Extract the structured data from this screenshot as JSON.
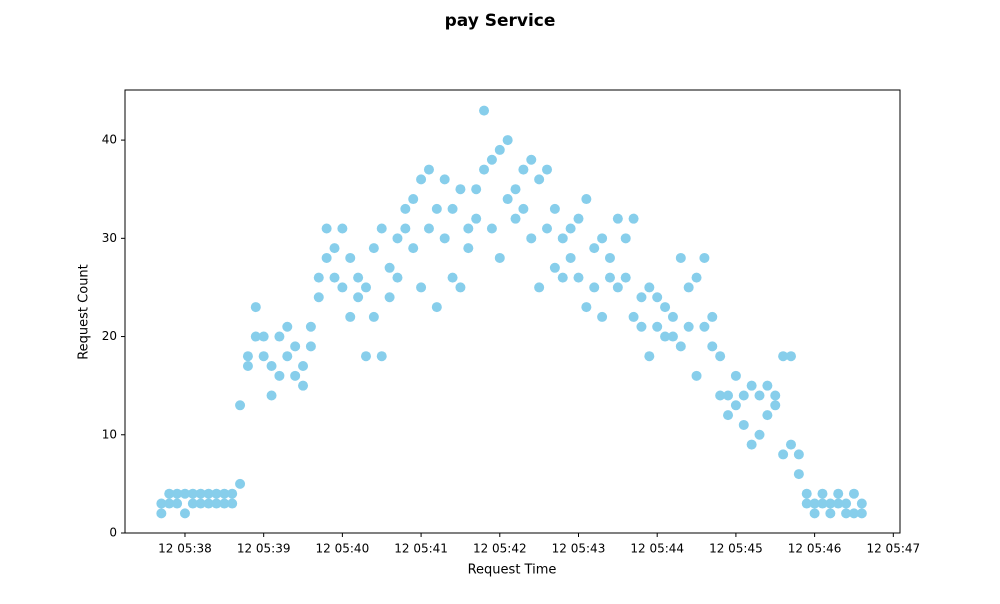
{
  "chart_data": {
    "type": "scatter",
    "title": "pay Service",
    "x_label": "Request Time",
    "y_label": "Request Count",
    "color": "#87ceeb",
    "grid": false,
    "xlim": [
      37.238,
      47.085
    ],
    "ylim": [
      0,
      45.1
    ],
    "xticks": [
      {
        "value": 38,
        "label": "12 05:38"
      },
      {
        "value": 39,
        "label": "12 05:39"
      },
      {
        "value": 40,
        "label": "12 05:40"
      },
      {
        "value": 41,
        "label": "12 05:41"
      },
      {
        "value": 42,
        "label": "12 05:42"
      },
      {
        "value": 43,
        "label": "12 05:43"
      },
      {
        "value": 44,
        "label": "12 05:44"
      },
      {
        "value": 45,
        "label": "12 05:45"
      },
      {
        "value": 46,
        "label": "12 05:46"
      },
      {
        "value": 47,
        "label": "12 05:47"
      }
    ],
    "yticks": [
      0,
      10,
      20,
      30,
      40
    ],
    "x": [
      37.7,
      37.7,
      37.8,
      37.8,
      37.9,
      37.9,
      38.0,
      38.0,
      38.1,
      38.1,
      38.2,
      38.2,
      38.3,
      38.3,
      38.4,
      38.4,
      38.5,
      38.5,
      38.6,
      38.6,
      38.7,
      38.7,
      38.8,
      38.8,
      38.9,
      38.9,
      39.0,
      39.0,
      39.1,
      39.1,
      39.2,
      39.2,
      39.3,
      39.3,
      39.4,
      39.4,
      39.5,
      39.5,
      39.6,
      39.6,
      39.7,
      39.7,
      39.8,
      39.8,
      39.9,
      39.9,
      40.0,
      40.0,
      40.1,
      40.1,
      40.2,
      40.2,
      40.3,
      40.3,
      40.4,
      40.4,
      40.5,
      40.5,
      40.6,
      40.6,
      40.7,
      40.7,
      40.8,
      40.8,
      40.9,
      40.9,
      41.0,
      41.0,
      41.1,
      41.1,
      41.2,
      41.2,
      41.3,
      41.3,
      41.4,
      41.4,
      41.5,
      41.5,
      41.6,
      41.6,
      41.7,
      41.7,
      41.8,
      41.8,
      41.9,
      41.9,
      42.0,
      42.0,
      42.1,
      42.1,
      42.2,
      42.2,
      42.3,
      42.3,
      42.4,
      42.4,
      42.5,
      42.5,
      42.6,
      42.6,
      42.7,
      42.7,
      42.8,
      42.8,
      42.9,
      42.9,
      43.0,
      43.0,
      43.1,
      43.1,
      43.2,
      43.2,
      43.3,
      43.3,
      43.4,
      43.4,
      43.5,
      43.5,
      43.6,
      43.6,
      43.7,
      43.7,
      43.8,
      43.8,
      43.9,
      43.9,
      44.0,
      44.0,
      44.1,
      44.1,
      44.2,
      44.2,
      44.3,
      44.3,
      44.4,
      44.4,
      44.5,
      44.5,
      44.6,
      44.6,
      44.7,
      44.7,
      44.8,
      44.8,
      44.9,
      44.9,
      45.0,
      45.0,
      45.1,
      45.1,
      45.2,
      45.2,
      45.3,
      45.3,
      45.4,
      45.4,
      45.5,
      45.5,
      45.6,
      45.6,
      45.7,
      45.7,
      45.8,
      45.8,
      45.9,
      45.9,
      46.0,
      46.0,
      46.1,
      46.1,
      46.2,
      46.2,
      46.3,
      46.3,
      46.4,
      46.4,
      46.5,
      46.5,
      46.6,
      46.6
    ],
    "values": [
      2,
      3,
      4,
      3,
      4,
      3,
      2,
      4,
      3,
      4,
      4,
      3,
      3,
      4,
      4,
      3,
      3,
      4,
      4,
      3,
      5,
      13,
      18,
      17,
      23,
      20,
      18,
      20,
      14,
      17,
      20,
      16,
      21,
      18,
      19,
      16,
      17,
      15,
      21,
      19,
      24,
      26,
      31,
      28,
      29,
      26,
      31,
      25,
      28,
      22,
      26,
      24,
      18,
      25,
      29,
      22,
      31,
      18,
      27,
      24,
      30,
      26,
      33,
      31,
      34,
      29,
      36,
      25,
      37,
      31,
      33,
      23,
      36,
      30,
      33,
      26,
      35,
      25,
      31,
      29,
      35,
      32,
      43,
      37,
      38,
      31,
      39,
      28,
      40,
      34,
      35,
      32,
      37,
      33,
      38,
      30,
      36,
      25,
      37,
      31,
      33,
      27,
      30,
      26,
      31,
      28,
      32,
      26,
      34,
      23,
      29,
      25,
      30,
      22,
      28,
      26,
      32,
      25,
      30,
      26,
      32,
      22,
      24,
      21,
      25,
      18,
      24,
      21,
      23,
      20,
      22,
      20,
      28,
      19,
      25,
      21,
      26,
      16,
      28,
      21,
      22,
      19,
      18,
      14,
      14,
      12,
      16,
      13,
      11,
      14,
      15,
      9,
      14,
      10,
      15,
      12,
      14,
      13,
      18,
      8,
      18,
      9,
      8,
      6,
      4,
      3,
      2,
      3,
      4,
      3,
      2,
      3,
      4,
      3,
      2,
      3,
      4,
      2,
      3,
      2
    ]
  }
}
